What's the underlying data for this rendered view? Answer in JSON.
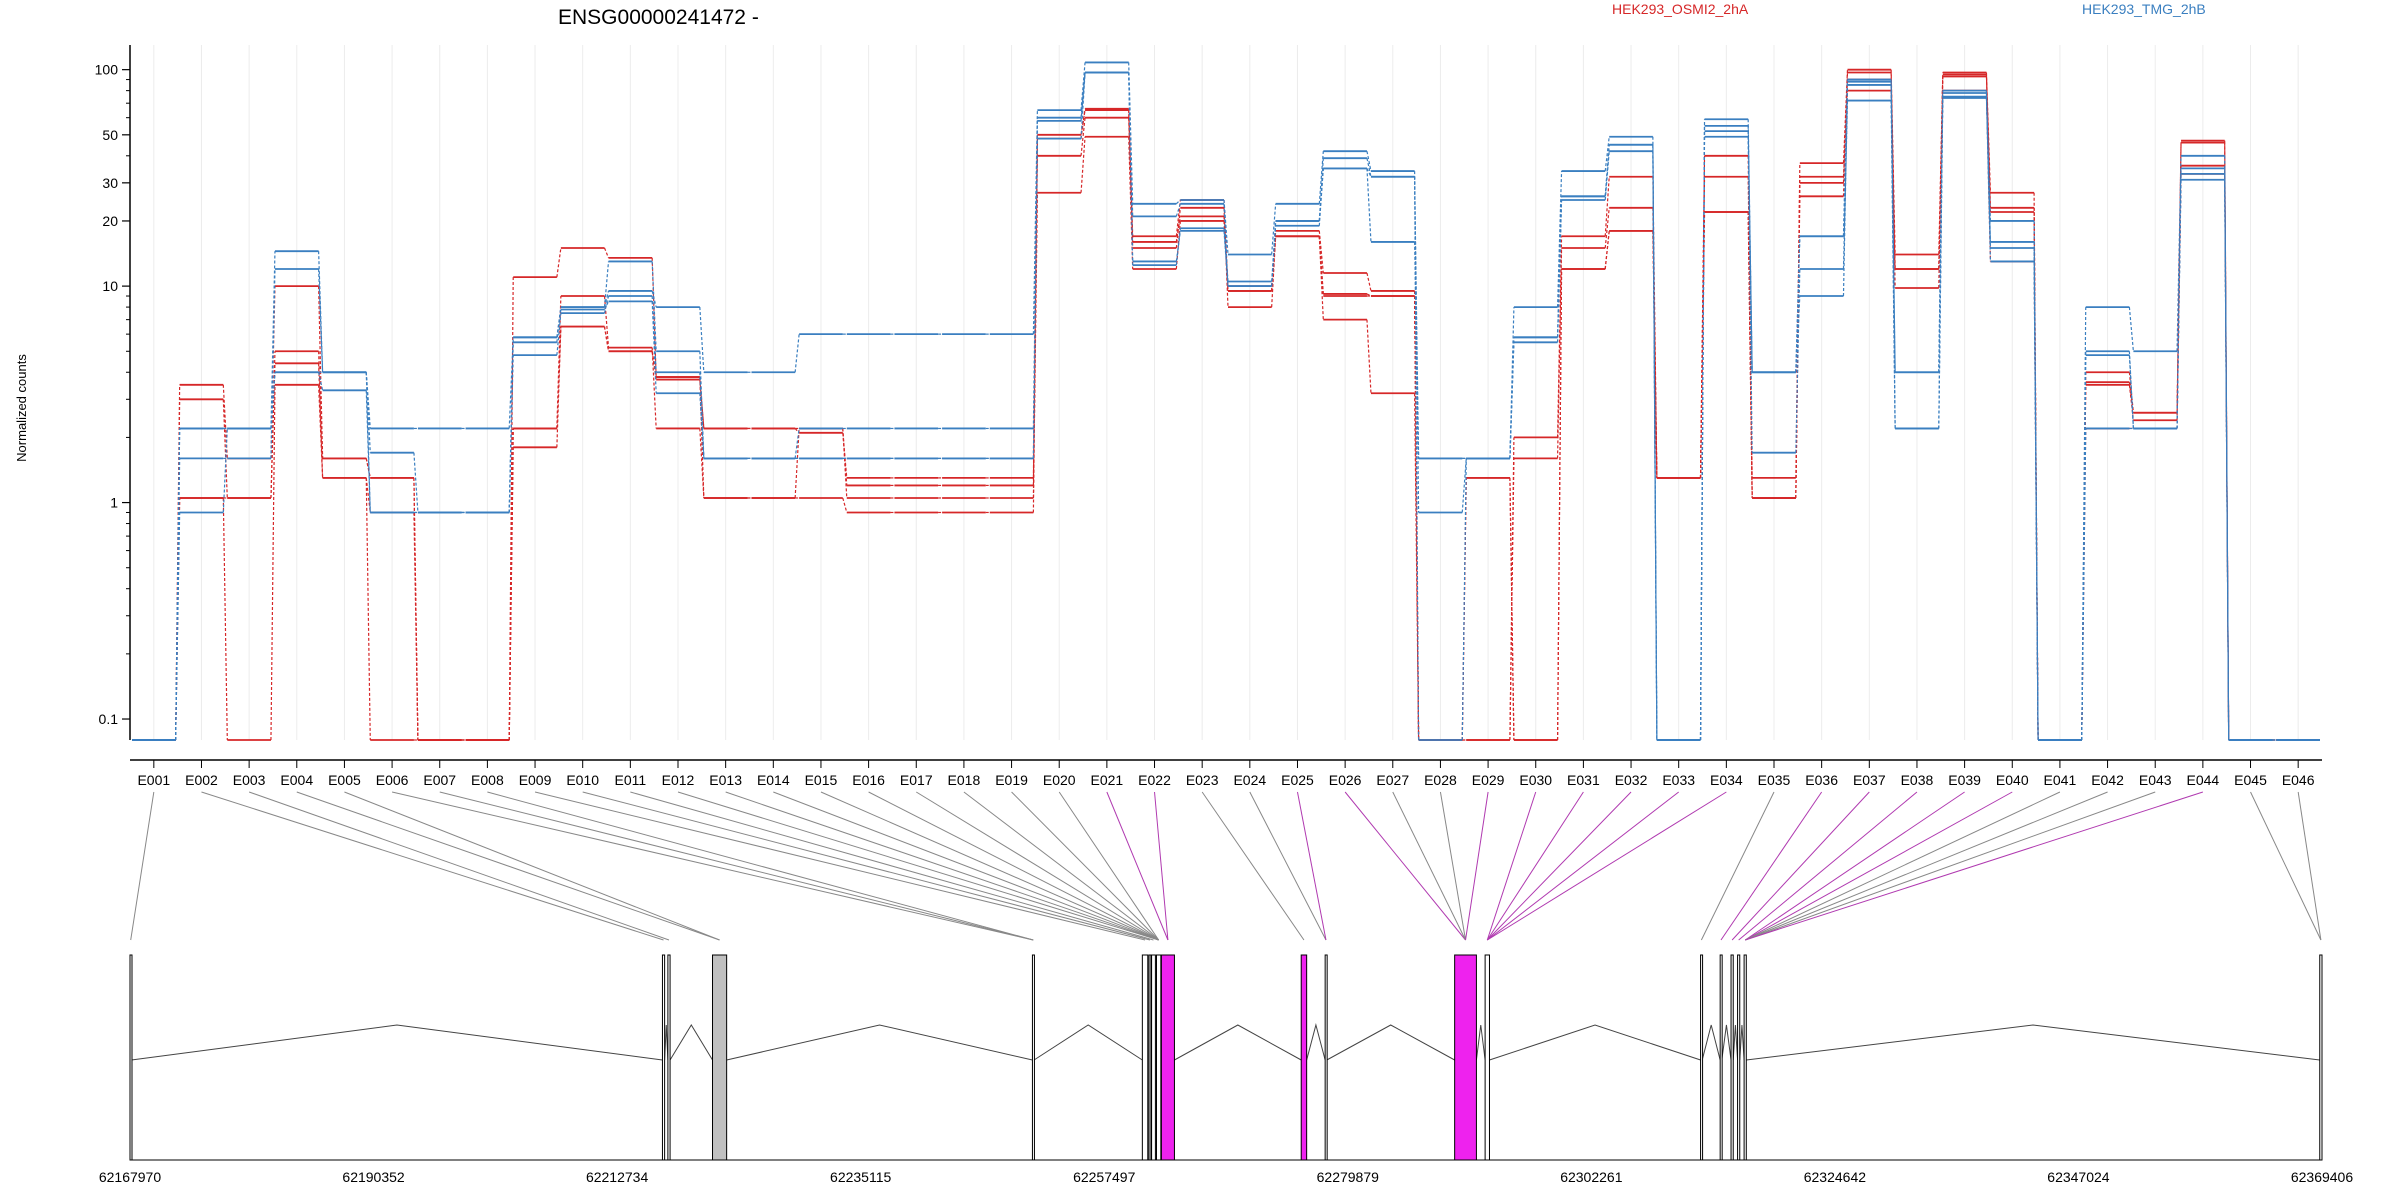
{
  "chart_data": {
    "type": "line",
    "title": "ENSG00000241472 -",
    "ylabel": "Normalized counts",
    "xlabel": "",
    "yscale": "log",
    "ylim": [
      0.08,
      130
    ],
    "grid": true,
    "legend_placement": "top-right",
    "y_ticks": [
      0.1,
      1,
      10,
      20,
      30,
      50,
      100
    ],
    "y_tick_labels": [
      "0.1",
      "1",
      "10",
      "20",
      "30",
      "50",
      "100"
    ],
    "categories": [
      "E001",
      "E002",
      "E003",
      "E004",
      "E005",
      "E006",
      "E007",
      "E008",
      "E009",
      "E010",
      "E011",
      "E012",
      "E013",
      "E014",
      "E015",
      "E016",
      "E017",
      "E018",
      "E019",
      "E020",
      "E021",
      "E022",
      "E023",
      "E024",
      "E025",
      "E026",
      "E027",
      "E028",
      "E029",
      "E030",
      "E031",
      "E032",
      "E033",
      "E034",
      "E035",
      "E036",
      "E037",
      "E038",
      "E039",
      "E040",
      "E041",
      "E042",
      "E043",
      "E044",
      "E045",
      "E046"
    ],
    "legend": [
      {
        "label": "HEK293_OSMI2_2hA",
        "color": "#d62728"
      },
      {
        "label": "HEK293_TMG_2hB",
        "color": "#3a7fc0"
      }
    ],
    "series": [
      {
        "group": "HEK293_OSMI2_2hA",
        "color": "#d62728",
        "values": [
          0.08,
          3.5,
          1.6,
          10,
          1.6,
          1.3,
          0.08,
          0.08,
          11,
          15,
          13.5,
          3.8,
          1.05,
          1.05,
          2.2,
          1.2,
          1.2,
          1.2,
          1.2,
          48,
          66,
          17,
          25,
          9.5,
          18,
          11.5,
          9.5,
          0.08,
          1.3,
          0.08,
          12,
          18,
          1.3,
          22,
          1.05,
          26,
          97,
          9.8,
          97,
          27,
          0.08,
          4,
          2.6,
          46,
          0.08,
          0.08
        ]
      },
      {
        "group": "HEK293_OSMI2_2hA",
        "color": "#d62728",
        "values": [
          0.08,
          3,
          1.05,
          4.4,
          1.3,
          0.9,
          0.08,
          0.08,
          2.2,
          9,
          5.2,
          2.2,
          1.05,
          1.05,
          1.05,
          0.9,
          0.9,
          0.9,
          0.9,
          40,
          60,
          15,
          23,
          8,
          17,
          7,
          3.2,
          0.08,
          0.08,
          2,
          17,
          32,
          1.3,
          40,
          1.05,
          37,
          100,
          14,
          93,
          23,
          0.08,
          3.5,
          2.4,
          47,
          0.08,
          0.08
        ]
      },
      {
        "group": "HEK293_OSMI2_2hA",
        "color": "#d62728",
        "values": [
          0.08,
          1.05,
          0.08,
          3.5,
          1.3,
          0.08,
          0.08,
          0.08,
          1.8,
          6.5,
          5,
          3.8,
          2.2,
          2.2,
          2.2,
          1.05,
          1.05,
          1.05,
          1.05,
          27,
          49,
          12,
          20,
          10,
          17,
          9.2,
          9,
          0.08,
          0.08,
          1.6,
          15,
          23,
          1.3,
          32,
          1.3,
          32,
          80,
          12,
          80,
          13,
          0.08,
          2.2,
          2.2,
          36,
          0.08,
          0.08
        ]
      },
      {
        "group": "HEK293_OSMI2_2hA",
        "color": "#d62728",
        "values": [
          0.08,
          1.05,
          1.05,
          5,
          1.6,
          1.3,
          0.08,
          0.08,
          2.2,
          6.5,
          5,
          3.7,
          2.2,
          2.2,
          2.1,
          1.3,
          1.3,
          1.3,
          1.3,
          50,
          65,
          16,
          21,
          9.5,
          17,
          9,
          9,
          0.08,
          1.3,
          0.08,
          12,
          18,
          1.3,
          22,
          1.05,
          30,
          90,
          12,
          95,
          22,
          0.08,
          3.6,
          2.6,
          33,
          0.08,
          0.08
        ]
      },
      {
        "group": "HEK293_TMG_2hB",
        "color": "#3a7fc0",
        "values": [
          0.08,
          2.2,
          2.2,
          14.5,
          4,
          2.2,
          2.2,
          2.2,
          5.8,
          8,
          9.5,
          8,
          4,
          4,
          6,
          6,
          6,
          6,
          6,
          65,
          108,
          24,
          25,
          14,
          24,
          42,
          34,
          0.9,
          1.6,
          8,
          34,
          49,
          0.08,
          59,
          4,
          17,
          90,
          4,
          80,
          16,
          0.08,
          8,
          5,
          40,
          0.08,
          0.08
        ]
      },
      {
        "group": "HEK293_TMG_2hB",
        "color": "#3a7fc0",
        "values": [
          0.08,
          1.6,
          1.6,
          12,
          4,
          1.7,
          0.9,
          0.9,
          5.5,
          8,
          13,
          5,
          1.6,
          1.6,
          1.6,
          1.6,
          1.6,
          1.6,
          1.6,
          48,
          97,
          21,
          24,
          10,
          20,
          39,
          32,
          0.08,
          1.6,
          5.8,
          26,
          45,
          0.08,
          52,
          1.7,
          12,
          72,
          2.2,
          74,
          20,
          0.08,
          5,
          2.2,
          35,
          0.08,
          0.08
        ]
      },
      {
        "group": "HEK293_TMG_2hB",
        "color": "#3a7fc0",
        "values": [
          0.08,
          0.9,
          2.2,
          4,
          4,
          0.9,
          0.9,
          0.9,
          4.8,
          7.5,
          9,
          4,
          1.6,
          1.6,
          2.2,
          2.2,
          2.2,
          2.2,
          2.2,
          58,
          97,
          13,
          18,
          10,
          20,
          35,
          16,
          1.6,
          1.6,
          5.5,
          25,
          42,
          0.08,
          49,
          4,
          9,
          85,
          2.2,
          78,
          15,
          0.08,
          2.2,
          2.2,
          31,
          0.08,
          0.08
        ]
      },
      {
        "group": "HEK293_TMG_2hB",
        "color": "#3a7fc0",
        "values": [
          0.08,
          2.2,
          2.2,
          4,
          3.3,
          0.9,
          0.9,
          0.9,
          5.8,
          7.8,
          8.5,
          3.2,
          1.6,
          1.6,
          1.6,
          1.6,
          1.6,
          1.6,
          1.6,
          60,
          97,
          12.5,
          18.5,
          10.5,
          19,
          35,
          32,
          1.6,
          1.6,
          5.8,
          26,
          45,
          0.08,
          55,
          4,
          17,
          88,
          4,
          75,
          13,
          0.08,
          4.8,
          2.2,
          33,
          0.08,
          0.08
        ]
      }
    ],
    "gene_model": {
      "genomic_ticks": [
        "62167970",
        "62190352",
        "62212734",
        "62235115",
        "62257497",
        "62279879",
        "62302261",
        "62324642",
        "62347024",
        "62369406"
      ],
      "exons": [
        {
          "start": 62167970,
          "end": 62168100,
          "fill": "#ffffff"
        },
        {
          "start": 62216900,
          "end": 62217100,
          "fill": "#ffffff"
        },
        {
          "start": 62217400,
          "end": 62217600,
          "fill": "#ffffff"
        },
        {
          "start": 62221500,
          "end": 62222800,
          "fill": "#c0c0c0"
        },
        {
          "start": 62250900,
          "end": 62251050,
          "fill": "#ffffff"
        },
        {
          "start": 62261000,
          "end": 62261500,
          "fill": "#ffffff"
        },
        {
          "start": 62261600,
          "end": 62261800,
          "fill": "#c0c0c0"
        },
        {
          "start": 62261850,
          "end": 62262200,
          "fill": "#ffffff"
        },
        {
          "start": 62262300,
          "end": 62262700,
          "fill": "#ffffff"
        },
        {
          "start": 62262750,
          "end": 62263950,
          "fill": "#ee22ee"
        },
        {
          "start": 62275600,
          "end": 62276100,
          "fill": "#ee22ee"
        },
        {
          "start": 62277800,
          "end": 62277950,
          "fill": "#ffffff"
        },
        {
          "start": 62289700,
          "end": 62291700,
          "fill": "#ee22ee"
        },
        {
          "start": 62292500,
          "end": 62292900,
          "fill": "#ffffff"
        },
        {
          "start": 62312300,
          "end": 62312450,
          "fill": "#ffffff"
        },
        {
          "start": 62314100,
          "end": 62314250,
          "fill": "#ffffff"
        },
        {
          "start": 62315100,
          "end": 62315300,
          "fill": "#ffffff"
        },
        {
          "start": 62315700,
          "end": 62315900,
          "fill": "#ffffff"
        },
        {
          "start": 62316300,
          "end": 62316500,
          "fill": "#ffffff"
        },
        {
          "start": 62369200,
          "end": 62369406,
          "fill": "#ffffff"
        }
      ],
      "connector_colors": {
        "constitutive": "#888888",
        "tested": "#b03ab0"
      },
      "tested_exons": [
        "E021",
        "E022",
        "E025",
        "E026",
        "E029",
        "E030",
        "E031",
        "E032",
        "E033",
        "E034",
        "E036",
        "E037",
        "E038",
        "E039",
        "E040",
        "E044"
      ],
      "exon_anchor_map": [
        0,
        1,
        2,
        3,
        3,
        4,
        4,
        4,
        5,
        6,
        7,
        8,
        8,
        8,
        8,
        8,
        8,
        8,
        8,
        8,
        9,
        9,
        10,
        11,
        11,
        12,
        12,
        12,
        12,
        13,
        13,
        13,
        13,
        13,
        14,
        15,
        16,
        17,
        18,
        18,
        18,
        18,
        18,
        18,
        19,
        19
      ]
    }
  }
}
